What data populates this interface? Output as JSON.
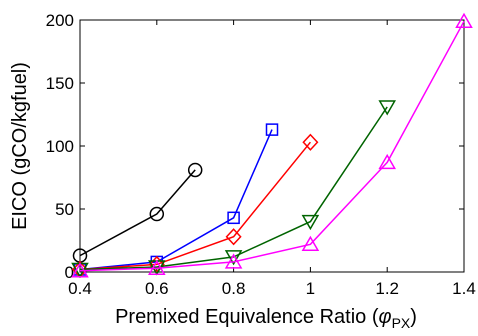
{
  "chart_data": {
    "type": "line",
    "title": "",
    "xlabel": "Premixed Equivalence Ratio (",
    "xlabel_symbol": "φ",
    "xlabel_subscript": "PX",
    "xlabel_suffix": ")",
    "ylabel": "EICO (gCO/kgfuel)",
    "xlim": [
      0.4,
      1.4
    ],
    "ylim": [
      0,
      200
    ],
    "xticks": [
      0.4,
      0.6,
      0.8,
      1,
      1.2,
      1.4
    ],
    "xtick_labels": [
      "0.4",
      "0.6",
      "0.8",
      "1",
      "1.2",
      "1.4"
    ],
    "yticks": [
      0,
      50,
      100,
      150,
      200
    ],
    "ytick_labels": [
      "0",
      "50",
      "100",
      "150",
      "200"
    ],
    "grid": false,
    "legend": "none",
    "series": [
      {
        "color": "#000000",
        "marker": "circle",
        "x": [
          0.4,
          0.6,
          0.7
        ],
        "y": [
          13,
          46,
          81
        ]
      },
      {
        "color": "#0000ff",
        "marker": "square",
        "x": [
          0.4,
          0.6,
          0.8,
          0.9
        ],
        "y": [
          2,
          8,
          43,
          113
        ]
      },
      {
        "color": "#ff0000",
        "marker": "diamond",
        "x": [
          0.4,
          0.6,
          0.8,
          1.0
        ],
        "y": [
          2,
          6,
          28,
          103
        ]
      },
      {
        "color": "#006400",
        "marker": "triangle-down",
        "x": [
          0.4,
          0.6,
          0.8,
          1.0,
          1.2
        ],
        "y": [
          2,
          4,
          12,
          40,
          131
        ]
      },
      {
        "color": "#ff00ff",
        "marker": "triangle-up",
        "x": [
          0.4,
          0.6,
          0.8,
          1.0,
          1.2,
          1.4
        ],
        "y": [
          1,
          3,
          8,
          22,
          87,
          199
        ]
      }
    ]
  }
}
